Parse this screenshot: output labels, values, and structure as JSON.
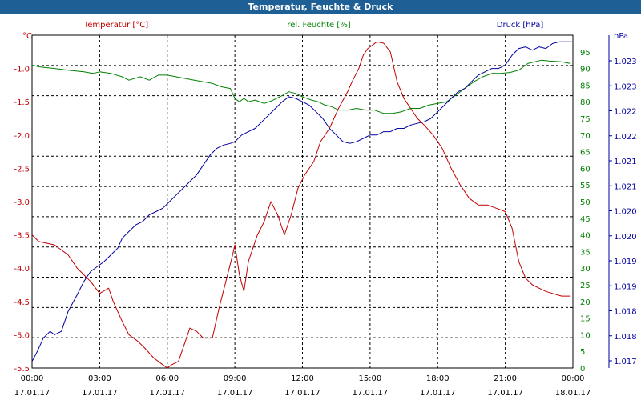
{
  "window": {
    "title": "Temperatur, Feuchte & Druck"
  },
  "colors": {
    "temperature": "#c00000",
    "humidity": "#008000",
    "pressure": "#0000a0",
    "grid": "#000000"
  },
  "chart_data": {
    "type": "line",
    "title": "Temperatur, Feuchte & Druck",
    "grid": true,
    "x_range": [
      "17.01.17 00:00",
      "18.01.17 00:00"
    ],
    "x_ticks": [
      {
        "time": "00:00",
        "date": "17.01.17"
      },
      {
        "time": "03:00",
        "date": "17.01.17"
      },
      {
        "time": "06:00",
        "date": "17.01.17"
      },
      {
        "time": "09:00",
        "date": "17.01.17"
      },
      {
        "time": "12:00",
        "date": "17.01.17"
      },
      {
        "time": "15:00",
        "date": "17.01.17"
      },
      {
        "time": "18:00",
        "date": "17.01.17"
      },
      {
        "time": "21:00",
        "date": "17.01.17"
      },
      {
        "time": "00:00",
        "date": "18.01.17"
      }
    ],
    "axes": {
      "temperature": {
        "unit": "°C",
        "series_label": "Temperatur [°C]",
        "side": "left",
        "range": [
          -5.5,
          -0.5
        ],
        "ticks": [
          "-1.0",
          "-1.5",
          "-2.0",
          "-2.5",
          "-3.0",
          "-3.5",
          "-4.0",
          "-4.5",
          "-5.0",
          "-5.5"
        ]
      },
      "humidity": {
        "unit": "%",
        "series_label": "rel. Feuchte [%]",
        "side": "right-inner",
        "range": [
          0,
          100
        ],
        "ticks": [
          "95",
          "90",
          "85",
          "80",
          "75",
          "70",
          "65",
          "60",
          "55",
          "50",
          "45",
          "40",
          "35",
          "30",
          "25",
          "20",
          "15",
          "10",
          "5",
          "0"
        ]
      },
      "pressure": {
        "unit": "hPa",
        "series_label": "Druck [hPa]",
        "side": "right-outer",
        "ticks": [
          "1.023",
          "1.023",
          "1.022",
          "1.022",
          "1.021",
          "1.021",
          "1.020",
          "1.020",
          "1.019",
          "1.019",
          "1.018",
          "1.018",
          "1.017"
        ]
      }
    },
    "series": [
      {
        "name": "Temperatur [°C]",
        "axis": "temperature",
        "hours": [
          0,
          0.3,
          1,
          1.6,
          2,
          2.3,
          2.6,
          3,
          3.4,
          3.6,
          4,
          4.3,
          4.7,
          5,
          5.4,
          5.8,
          6,
          6.2,
          6.5,
          6.8,
          7,
          7.3,
          7.6,
          8,
          8.3,
          8.6,
          8.9,
          9,
          9.2,
          9.4,
          9.6,
          9.8,
          10,
          10.3,
          10.6,
          10.9,
          11.2,
          11.5,
          11.8,
          12.1,
          12.5,
          12.8,
          13.2,
          13.6,
          14,
          14.2,
          14.5,
          14.7,
          14.9,
          15.1,
          15.3,
          15.6,
          15.9,
          16.2,
          16.5,
          16.8,
          17.1,
          17.4,
          17.8,
          18.2,
          18.6,
          19,
          19.4,
          19.8,
          20.2,
          20.6,
          21,
          21.3,
          21.6,
          21.9,
          22.2,
          22.5,
          22.8,
          23.1,
          23.5,
          23.9
        ],
        "values": [
          -3.5,
          -3.6,
          -3.65,
          -3.8,
          -4.0,
          -4.1,
          -4.2,
          -4.38,
          -4.3,
          -4.5,
          -4.8,
          -5.0,
          -5.1,
          -5.2,
          -5.35,
          -5.45,
          -5.5,
          -5.45,
          -5.4,
          -5.1,
          -4.9,
          -4.95,
          -5.05,
          -5.05,
          -4.6,
          -4.2,
          -3.8,
          -3.65,
          -4.1,
          -4.35,
          -3.9,
          -3.7,
          -3.5,
          -3.3,
          -3.0,
          -3.2,
          -3.5,
          -3.2,
          -2.8,
          -2.6,
          -2.4,
          -2.1,
          -1.9,
          -1.6,
          -1.35,
          -1.2,
          -1.0,
          -0.8,
          -0.7,
          -0.65,
          -0.6,
          -0.62,
          -0.75,
          -1.2,
          -1.45,
          -1.6,
          -1.75,
          -1.85,
          -2.0,
          -2.2,
          -2.5,
          -2.75,
          -2.95,
          -3.05,
          -3.05,
          -3.1,
          -3.15,
          -3.4,
          -3.9,
          -4.15,
          -4.25,
          -4.3,
          -4.35,
          -4.38,
          -4.42,
          -4.42
        ]
      },
      {
        "name": "rel. Feuchte [%]",
        "axis": "humidity",
        "hours": [
          0,
          0.3,
          1,
          1.6,
          2.3,
          2.7,
          3,
          3.5,
          4,
          4.3,
          4.8,
          5.2,
          5.6,
          6,
          6.4,
          6.8,
          7.2,
          7.6,
          8,
          8.4,
          8.8,
          9,
          9.2,
          9.4,
          9.6,
          9.9,
          10.3,
          10.6,
          11,
          11.4,
          11.7,
          12,
          12.4,
          12.7,
          13,
          13.3,
          13.6,
          14,
          14.4,
          14.8,
          15.2,
          15.6,
          16,
          16.4,
          16.8,
          17.2,
          17.6,
          18,
          18.4,
          18.8,
          19.2,
          19.6,
          20,
          20.4,
          20.8,
          21.2,
          21.6,
          22,
          22.3,
          22.6,
          23,
          23.5,
          23.9
        ],
        "values": [
          91,
          90.5,
          90,
          89.5,
          89,
          88.5,
          89,
          88.5,
          87.5,
          86.5,
          87.5,
          86.5,
          88,
          88,
          87.5,
          87,
          86.5,
          86,
          85.5,
          84.5,
          84,
          81,
          80,
          81,
          80,
          80.5,
          79.5,
          80.2,
          81.5,
          83,
          82.5,
          81.5,
          80.5,
          80,
          79,
          78.5,
          77.5,
          77.5,
          78,
          77.5,
          77.5,
          76.5,
          76.5,
          77,
          78,
          78,
          79,
          79.5,
          80,
          82,
          84,
          86,
          87.5,
          88.5,
          88.5,
          88.8,
          89.5,
          91.5,
          92,
          92.5,
          92.2,
          92,
          91.5
        ]
      },
      {
        "name": "Druck [hPa]",
        "axis": "pressure",
        "hours": [
          0,
          0.2,
          0.5,
          0.8,
          1,
          1.3,
          1.6,
          2,
          2.3,
          2.6,
          3,
          3.2,
          3.5,
          3.8,
          4,
          4.3,
          4.6,
          4.9,
          5.2,
          5.5,
          5.8,
          6.1,
          6.4,
          6.7,
          7,
          7.3,
          7.6,
          7.9,
          8.2,
          8.5,
          8.8,
          9,
          9.3,
          9.6,
          9.9,
          10.2,
          10.5,
          10.8,
          11.1,
          11.4,
          11.7,
          12,
          12.3,
          12.6,
          12.9,
          13.2,
          13.5,
          13.8,
          14.1,
          14.4,
          14.7,
          15,
          15.3,
          15.6,
          15.9,
          16.2,
          16.5,
          16.8,
          17.1,
          17.4,
          17.7,
          18,
          18.3,
          18.6,
          18.9,
          19.2,
          19.5,
          19.8,
          20.1,
          20.4,
          20.7,
          21,
          21.3,
          21.6,
          21.9,
          22.2,
          22.5,
          22.8,
          23.1,
          23.4,
          23.7,
          23.95
        ],
        "pos": [
          0.02,
          0.045,
          0.09,
          0.11,
          0.1,
          0.11,
          0.17,
          0.22,
          0.26,
          0.29,
          0.31,
          0.32,
          0.34,
          0.36,
          0.39,
          0.41,
          0.43,
          0.44,
          0.46,
          0.47,
          0.48,
          0.5,
          0.52,
          0.54,
          0.56,
          0.58,
          0.61,
          0.64,
          0.66,
          0.67,
          0.675,
          0.68,
          0.7,
          0.71,
          0.72,
          0.74,
          0.76,
          0.78,
          0.8,
          0.815,
          0.81,
          0.8,
          0.79,
          0.77,
          0.75,
          0.72,
          0.7,
          0.68,
          0.675,
          0.68,
          0.69,
          0.7,
          0.7,
          0.71,
          0.71,
          0.72,
          0.72,
          0.73,
          0.735,
          0.74,
          0.75,
          0.77,
          0.79,
          0.81,
          0.83,
          0.84,
          0.86,
          0.88,
          0.89,
          0.9,
          0.9,
          0.91,
          0.94,
          0.96,
          0.965,
          0.955,
          0.965,
          0.96,
          0.975,
          0.98,
          0.98,
          0.98
        ]
      }
    ]
  }
}
